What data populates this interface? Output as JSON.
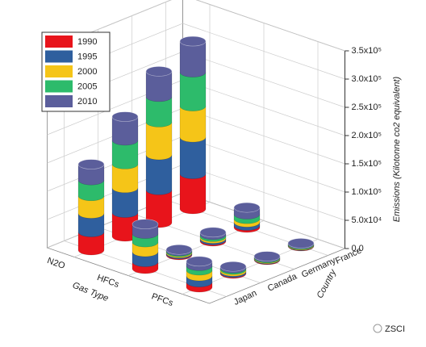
{
  "chart_data": {
    "type": "bar3d-cylinder",
    "x_label": "Gas Type",
    "z_label": "Country",
    "y_label": "Emissions (Kilotonne  co2 equivalent)",
    "gases": [
      "N2O",
      "HFCs",
      "PFCs"
    ],
    "countries": [
      "Japan",
      "Canada",
      "Germany",
      "France"
    ],
    "series": [
      {
        "name": "1990",
        "color": "#e8141b",
        "values": [
          [
            32000,
            42000,
            58000,
            62000
          ],
          [
            12000,
            1500,
            2000,
            3500
          ],
          [
            9000,
            1500,
            800,
            600
          ]
        ]
      },
      {
        "name": "1995",
        "color": "#2f5f9e",
        "values": [
          [
            33000,
            44000,
            62000,
            65000
          ],
          [
            18000,
            2000,
            3000,
            6000
          ],
          [
            11000,
            2500,
            1000,
            800
          ]
        ]
      },
      {
        "name": "2000",
        "color": "#f5c518",
        "values": [
          [
            31000,
            42000,
            58000,
            55000
          ],
          [
            17000,
            1800,
            3000,
            6000
          ],
          [
            10000,
            3000,
            1200,
            1000
          ]
        ]
      },
      {
        "name": "2005",
        "color": "#2dbb6b",
        "values": [
          [
            28000,
            42000,
            45000,
            60000
          ],
          [
            15000,
            1800,
            3500,
            8000
          ],
          [
            8000,
            2500,
            1500,
            1200
          ]
        ]
      },
      {
        "name": "2010",
        "color": "#5b5e9b",
        "values": [
          [
            28000,
            42000,
            45000,
            55000
          ],
          [
            17000,
            2500,
            4500,
            12000
          ],
          [
            8000,
            3000,
            1800,
            1500
          ]
        ]
      }
    ],
    "ylim": [
      0,
      350000
    ],
    "yticks": [
      {
        "value": 0,
        "label": "0.0"
      },
      {
        "value": 50000,
        "label": "5.0x10⁴"
      },
      {
        "value": 100000,
        "label": "1.0x10⁵"
      },
      {
        "value": 150000,
        "label": "1.5x10⁵"
      },
      {
        "value": 200000,
        "label": "2.0x10⁵"
      },
      {
        "value": 250000,
        "label": "2.5x10⁵"
      },
      {
        "value": 300000,
        "label": "3.0x10⁵"
      },
      {
        "value": 350000,
        "label": "3.5x10⁵"
      }
    ],
    "grid": true,
    "legend": "top-left",
    "watermark": "ZSCI"
  }
}
